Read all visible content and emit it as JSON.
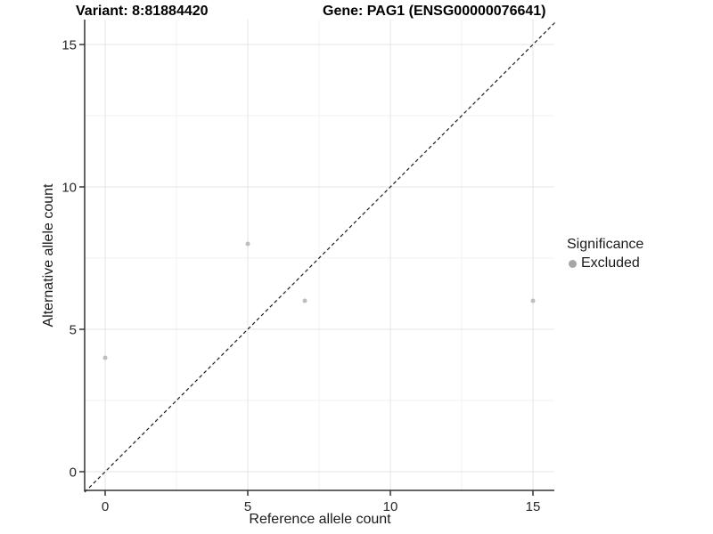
{
  "chart_data": {
    "type": "scatter",
    "title_left": "Variant: 8:81884420",
    "title_right": "Gene: PAG1 (ENSG00000076641)",
    "xlabel": "Reference allele count",
    "ylabel": "Alternative allele count",
    "xlim": [
      -0.75,
      15.75
    ],
    "ylim": [
      -0.75,
      15.75
    ],
    "x_ticks": [
      0,
      5,
      10,
      15
    ],
    "y_ticks": [
      0,
      5,
      10,
      15
    ],
    "x_minor_ticks": [
      2.5,
      7.5,
      12.5
    ],
    "y_minor_ticks": [
      2.5,
      7.5,
      12.5
    ],
    "grid": true,
    "series": [
      {
        "name": "Excluded",
        "color": "#bdbdbd",
        "points": [
          {
            "x": 0,
            "y": 4
          },
          {
            "x": 5,
            "y": 8
          },
          {
            "x": 7,
            "y": 6
          },
          {
            "x": 15,
            "y": 6
          }
        ]
      }
    ],
    "reference_line": {
      "type": "identity",
      "style": "dashed",
      "color": "#1a1a1a"
    },
    "legend": {
      "title": "Significance",
      "position": "right",
      "items": [
        {
          "label": "Excluded",
          "color": "#a6a6a6"
        }
      ]
    }
  },
  "colors": {
    "grid_major": "#e6e6e6",
    "grid_minor": "#f2f2f2",
    "axis_line": "#333333",
    "tick_mark": "#333333",
    "point": "#bdbdbd",
    "background": "#ffffff"
  }
}
